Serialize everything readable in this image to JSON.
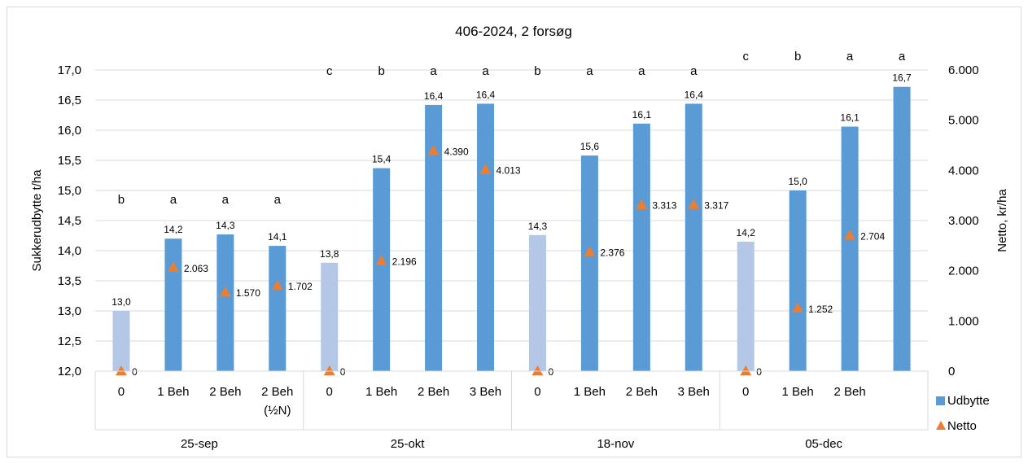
{
  "chart_data": {
    "type": "bar",
    "title": "406-2024, 2 forsøg",
    "ylabel": "Sukkerudbytte t/ha",
    "y2label": "Netto, kr/ha",
    "ylim": [
      12.0,
      17.0
    ],
    "y2lim": [
      0,
      6000
    ],
    "yticks": [
      "12,0",
      "12,5",
      "13,0",
      "13,5",
      "14,0",
      "14,5",
      "15,0",
      "15,5",
      "16,0",
      "16,5",
      "17,0"
    ],
    "y2ticks": [
      "0",
      "1.000",
      "2.000",
      "3.000",
      "4.000",
      "5.000",
      "6.000"
    ],
    "grid": true,
    "legend_position": "right",
    "colors": {
      "udbytte": "#5b9bd5",
      "control": "#b4c7e7",
      "netto": "#ed7d31"
    },
    "groups": [
      {
        "name": "25-sep",
        "items": [
          {
            "label": "0",
            "value": 13.0,
            "value_label": "13,0",
            "netto": 0,
            "netto_label": "0",
            "letter": "b",
            "control": true
          },
          {
            "label": "1 Beh",
            "value": 14.2,
            "value_label": "14,2",
            "netto": 2063,
            "netto_label": "2.063",
            "letter": "a",
            "control": false
          },
          {
            "label": "2 Beh",
            "value": 14.27,
            "value_label": "14,3",
            "netto": 1570,
            "netto_label": "1.570",
            "letter": "a",
            "control": false
          },
          {
            "label": "2 Beh",
            "label2": "(½N)",
            "value": 14.08,
            "value_label": "14,1",
            "netto": 1702,
            "netto_label": "1.702",
            "letter": "a",
            "control": false
          }
        ]
      },
      {
        "name": "25-okt",
        "items": [
          {
            "label": "0",
            "value": 13.8,
            "value_label": "13,8",
            "netto": 0,
            "netto_label": "0",
            "letter": "c",
            "control": true
          },
          {
            "label": "1 Beh",
            "value": 15.37,
            "value_label": "15,4",
            "netto": 2196,
            "netto_label": "2.196",
            "letter": "b",
            "control": false
          },
          {
            "label": "2 Beh",
            "value": 16.42,
            "value_label": "16,4",
            "netto": 4390,
            "netto_label": "4.390",
            "letter": "a",
            "control": false
          },
          {
            "label": "3 Beh",
            "value": 16.44,
            "value_label": "16,4",
            "netto": 4013,
            "netto_label": "4.013",
            "letter": "a",
            "control": false
          }
        ]
      },
      {
        "name": "18-nov",
        "items": [
          {
            "label": "0",
            "value": 14.26,
            "value_label": "14,3",
            "netto": 0,
            "netto_label": "0",
            "letter": "b",
            "control": true
          },
          {
            "label": "1 Beh",
            "value": 15.58,
            "value_label": "15,6",
            "netto": 2376,
            "netto_label": "2.376",
            "letter": "a",
            "control": false
          },
          {
            "label": "2 Beh",
            "value": 16.11,
            "value_label": "16,1",
            "netto": 3313,
            "netto_label": "3.313",
            "letter": "a",
            "control": false
          },
          {
            "label": "3 Beh",
            "value": 16.44,
            "value_label": "16,4",
            "netto": 3317,
            "netto_label": "3.317",
            "letter": "a",
            "control": false
          }
        ]
      },
      {
        "name": "05-dec",
        "items": [
          {
            "label": "0",
            "value": 14.15,
            "value_label": "14,2",
            "netto": 0,
            "netto_label": "0",
            "letter": "c",
            "control": true
          },
          {
            "label": "1 Beh",
            "value": 15.0,
            "value_label": "15,0",
            "netto": 1252,
            "netto_label": "1.252",
            "letter": "b",
            "control": false
          },
          {
            "label": "2 Beh",
            "value": 16.06,
            "value_label": "16,1",
            "netto": 2704,
            "netto_label": "2.704",
            "letter": "a",
            "control": false
          },
          {
            "label": "",
            "value": 16.72,
            "value_label": "16,7",
            "netto": null,
            "netto_label": "",
            "letter": "a",
            "control": false
          }
        ]
      }
    ],
    "legend": [
      {
        "name": "Udbytte",
        "marker": "square",
        "color": "#5b9bd5"
      },
      {
        "name": "Netto",
        "marker": "triangle",
        "color": "#ed7d31"
      }
    ]
  }
}
